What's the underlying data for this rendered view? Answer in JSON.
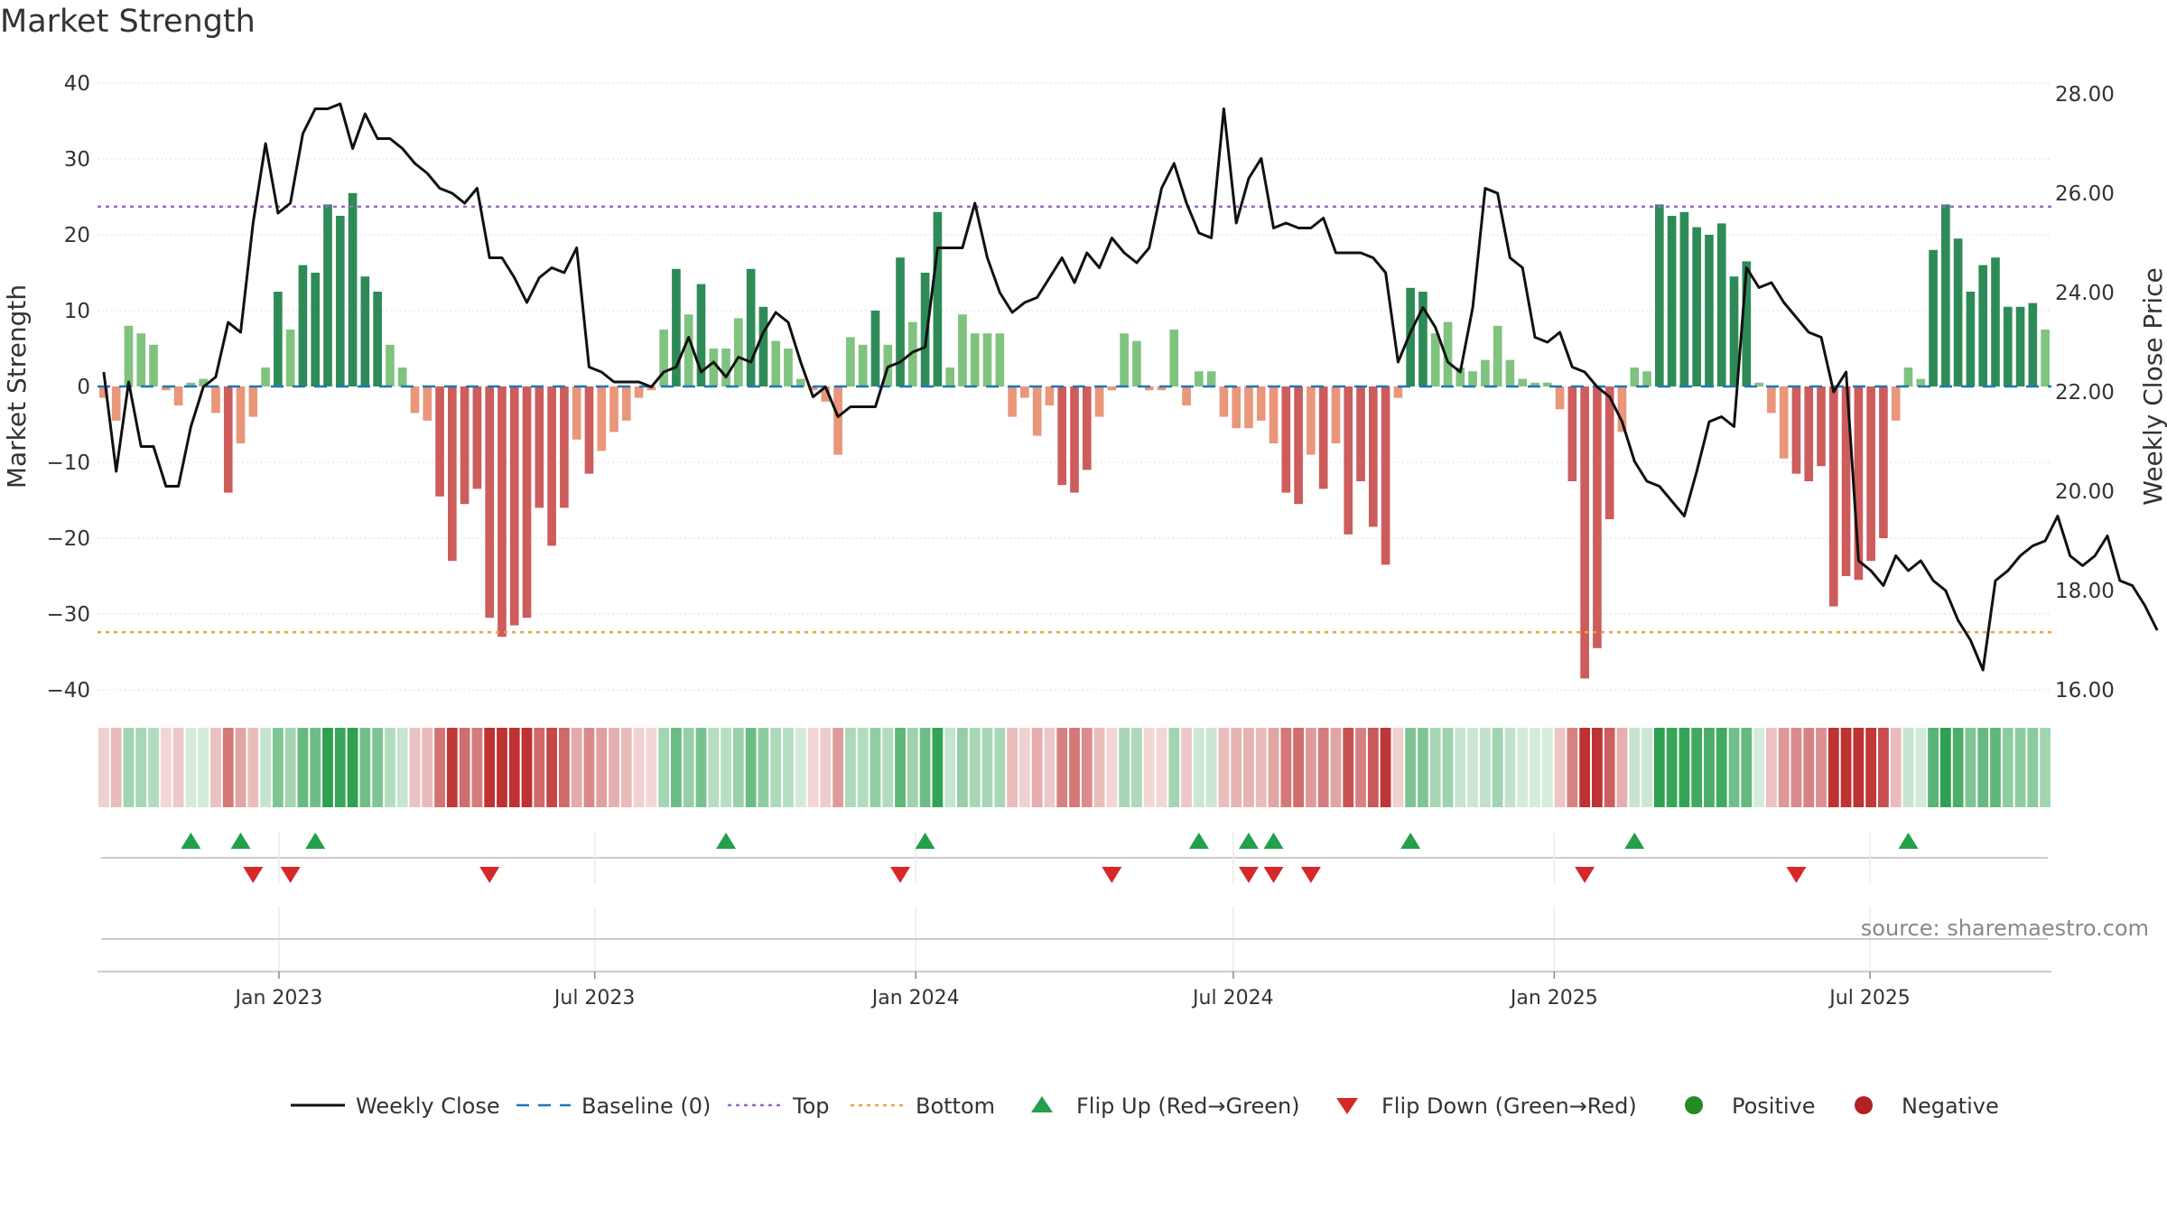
{
  "chart_data": {
    "type": "bar",
    "title": "Market Strength",
    "source": "source: sharemaestro.com",
    "ylabel_left": "Market Strength",
    "ylabel_right": "Weekly Close Price",
    "ylim_left": [
      -40,
      40
    ],
    "ylim_right": [
      16,
      28
    ],
    "yticks_left": [
      "40",
      "30",
      "20",
      "10",
      "0",
      "−10",
      "−20",
      "−30",
      "−40"
    ],
    "yticks_right": [
      "28.00",
      "26.00",
      "24.00",
      "22.00",
      "20.00",
      "18.00",
      "16.00"
    ],
    "xticks": [
      "Jan 2023",
      "Jul 2023",
      "Jan 2024",
      "Jul 2024",
      "Jan 2025",
      "Jul 2025"
    ],
    "x_start": "2022-09-19",
    "x_end": "2025-10-13",
    "week_count": 161,
    "top_level": 23.7,
    "bottom_level": -32.4,
    "baseline": 0,
    "strength": [
      -1.5,
      -4.5,
      8,
      7,
      5.5,
      -0.5,
      -2.5,
      0.5,
      1,
      -3.5,
      -14,
      -7.5,
      -4,
      2.5,
      12.5,
      7.5,
      16,
      15,
      24,
      22.5,
      25.5,
      14.5,
      12.5,
      5.5,
      2.5,
      -3.5,
      -4.5,
      -14.5,
      -23,
      -15.5,
      -13.5,
      -30.5,
      -33,
      -31.5,
      -30.5,
      -16,
      -21,
      -16,
      -7,
      -11.5,
      -8.5,
      -6,
      -4.5,
      -1.5,
      -0.5,
      7.5,
      15.5,
      9.5,
      13.5,
      5,
      5,
      9,
      15.5,
      10.5,
      6,
      5,
      1,
      -0.5,
      -2,
      -9,
      6.5,
      5.5,
      10,
      5.5,
      17,
      8.5,
      15,
      23,
      2.5,
      9.5,
      7,
      7,
      7,
      -4,
      -1.5,
      -6.5,
      -2.5,
      -13,
      -14,
      -11,
      -4,
      -0.5,
      7,
      6,
      -0.5,
      -0.5,
      7.5,
      -2.5,
      2,
      2,
      -4,
      -5.5,
      -5.5,
      -4.5,
      -7.5,
      -14,
      -15.5,
      -9,
      -13.5,
      -7.5,
      -19.5,
      -12.5,
      -18.5,
      -23.5,
      -1.5,
      13,
      12.5,
      7,
      8.5,
      2.5,
      2,
      3.5,
      8,
      3.5,
      1,
      0.5,
      0.5,
      -3,
      -12.5,
      -38.5,
      -34.5,
      -17.5,
      -6,
      2.5,
      2,
      24,
      22.5,
      23,
      21,
      20,
      21.5,
      14.5,
      16.5,
      0.5,
      -3.5,
      -9.5,
      -11.5,
      -12.5,
      -10.5,
      -29,
      -25,
      -25.5,
      -23,
      -20,
      -4.5,
      2.5,
      1,
      18,
      24,
      19.5,
      12.5,
      16,
      17,
      10.5,
      10.5,
      11,
      7.5
    ],
    "price": [
      22.4,
      20.4,
      22.2,
      20.9,
      20.9,
      20.1,
      20.1,
      21.3,
      22.1,
      22.3,
      23.4,
      23.2,
      25.4,
      27.0,
      25.6,
      25.8,
      27.2,
      27.7,
      27.7,
      27.8,
      26.9,
      27.6,
      27.1,
      27.1,
      26.9,
      26.6,
      26.4,
      26.1,
      26.0,
      25.8,
      26.1,
      24.7,
      24.7,
      24.3,
      23.8,
      24.3,
      24.5,
      24.4,
      24.9,
      22.5,
      22.4,
      22.2,
      22.2,
      22.2,
      22.1,
      22.4,
      22.5,
      23.1,
      22.4,
      22.6,
      22.3,
      22.7,
      22.6,
      23.2,
      23.6,
      23.4,
      22.6,
      21.9,
      22.1,
      21.5,
      21.7,
      21.7,
      21.7,
      22.5,
      22.6,
      22.8,
      22.9,
      24.9,
      24.9,
      24.9,
      25.8,
      24.7,
      24.0,
      23.6,
      23.8,
      23.9,
      24.3,
      24.7,
      24.2,
      24.8,
      24.5,
      25.1,
      24.8,
      24.6,
      24.9,
      26.1,
      26.6,
      25.8,
      25.2,
      25.1,
      27.7,
      25.4,
      26.3,
      26.7,
      25.3,
      25.4,
      25.3,
      25.3,
      25.5,
      24.8,
      24.8,
      24.8,
      24.7,
      24.4,
      22.6,
      23.2,
      23.7,
      23.3,
      22.6,
      22.4,
      23.7,
      26.1,
      26.0,
      24.7,
      24.5,
      23.1,
      23.0,
      23.2,
      22.5,
      22.4,
      22.1,
      21.9,
      21.4,
      20.6,
      20.2,
      20.1,
      19.8,
      19.5,
      20.4,
      21.4,
      21.5,
      21.3,
      24.5,
      24.1,
      24.2,
      23.8,
      23.5,
      23.2,
      23.1,
      22.0,
      22.4,
      18.6,
      18.4,
      18.1,
      18.7,
      18.4,
      18.6,
      18.2,
      18.0,
      17.4,
      17.0,
      16.4,
      18.2,
      18.4,
      18.7,
      18.9,
      19.0,
      19.5,
      18.7,
      18.5,
      18.7,
      19.1,
      18.2,
      18.1,
      17.7,
      17.2
    ],
    "flips_up": [
      7,
      11,
      17,
      50,
      66,
      88,
      92,
      94,
      105,
      123,
      145
    ],
    "flips_down": [
      12,
      15,
      31,
      64,
      81,
      92,
      94,
      97,
      119,
      136
    ],
    "legend": [
      {
        "label": "Weekly Close",
        "style": "solid-line",
        "color": "#111111"
      },
      {
        "label": "Baseline (0)",
        "style": "dash-line",
        "color": "#1f77b4"
      },
      {
        "label": "Top",
        "style": "dot-line",
        "color": "#9966cc"
      },
      {
        "label": "Bottom",
        "style": "dot-line",
        "color": "#e8a24a"
      },
      {
        "label": "Flip Up (Red→Green)",
        "style": "triangle-up",
        "color": "#22a04a"
      },
      {
        "label": "Flip Down (Green→Red)",
        "style": "triangle-down",
        "color": "#d62828"
      },
      {
        "label": "Positive",
        "style": "circle",
        "color": "#228b22"
      },
      {
        "label": "Negative",
        "style": "circle",
        "color": "#b22222"
      }
    ],
    "colors": {
      "strong_pos": "#2e8b57",
      "weak_pos": "#7fc37f",
      "strong_neg": "#cd5c5c",
      "weak_neg": "#e9967a",
      "price_line": "#111111",
      "top_line": "#9966cc",
      "bottom_line": "#e8a24a",
      "baseline": "#1f77b4",
      "grid": "#e6e6e6"
    },
    "grid": true,
    "legend_position": "bottom-center"
  }
}
